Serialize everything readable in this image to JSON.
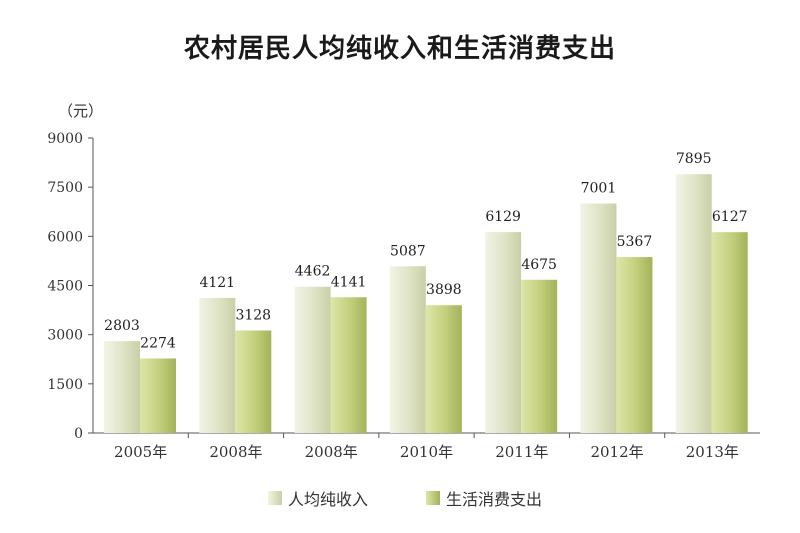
{
  "chart_data": {
    "type": "bar",
    "title": "农村居民人均纯收入和生活消费支出",
    "ylabel": "（元）",
    "xlabel": "",
    "ylim": [
      0,
      9000
    ],
    "yticks": [
      0,
      1500,
      3000,
      4500,
      6000,
      7500,
      9000
    ],
    "categories": [
      "2005年",
      "2008年",
      "2008年",
      "2010年",
      "2011年",
      "2012年",
      "2013年"
    ],
    "series": [
      {
        "name": "人均纯收入",
        "values": [
          2803,
          4121,
          4462,
          5087,
          6129,
          7001,
          7895
        ],
        "color": "#dfe3c6"
      },
      {
        "name": "生活消费支出",
        "values": [
          2274,
          3128,
          4141,
          3898,
          4675,
          5367,
          6127
        ],
        "color": "#c3cf7c"
      }
    ],
    "grid": false,
    "legend_position": "bottom"
  }
}
